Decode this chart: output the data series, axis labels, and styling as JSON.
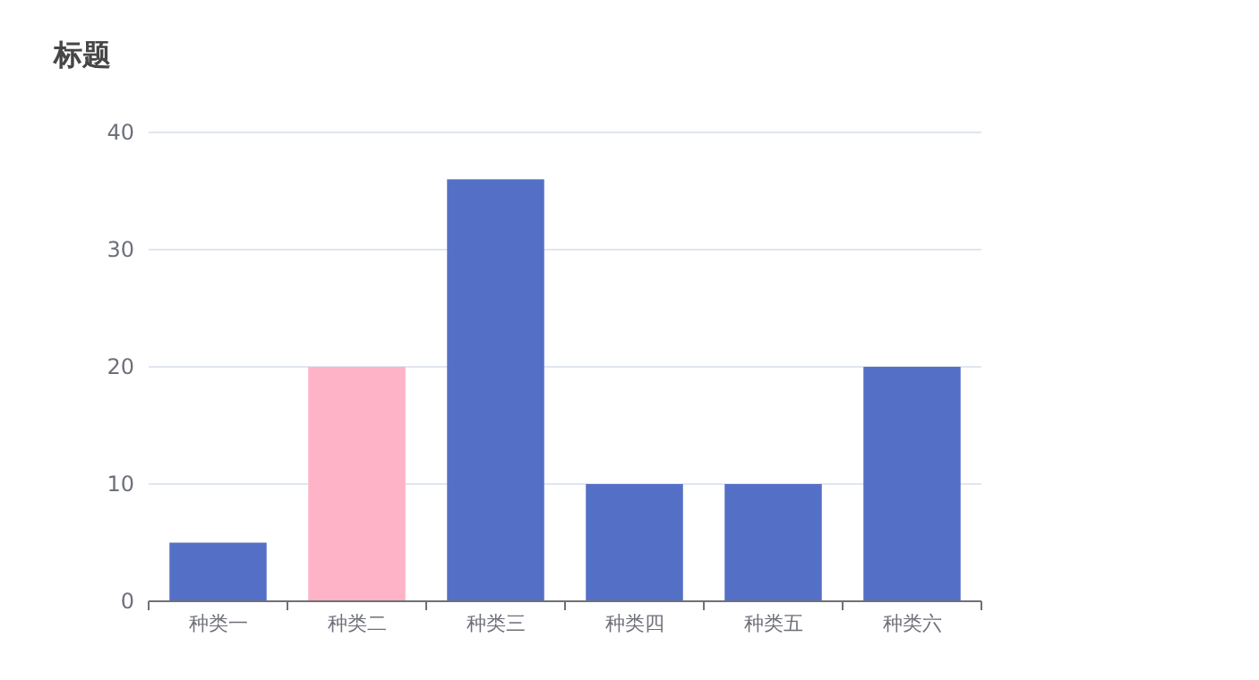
{
  "chart_data": {
    "type": "bar",
    "title": "标题",
    "categories": [
      "种类一",
      "种类二",
      "种类三",
      "种类四",
      "种类五",
      "种类六"
    ],
    "values": [
      5,
      20,
      36,
      10,
      10,
      20
    ],
    "colors": [
      "#5470c6",
      "#ffb3c7",
      "#5470c6",
      "#5470c6",
      "#5470c6",
      "#5470c6"
    ],
    "ylim": [
      0,
      40
    ],
    "yticks": [
      0,
      10,
      20,
      30,
      40
    ],
    "grid": "y"
  }
}
